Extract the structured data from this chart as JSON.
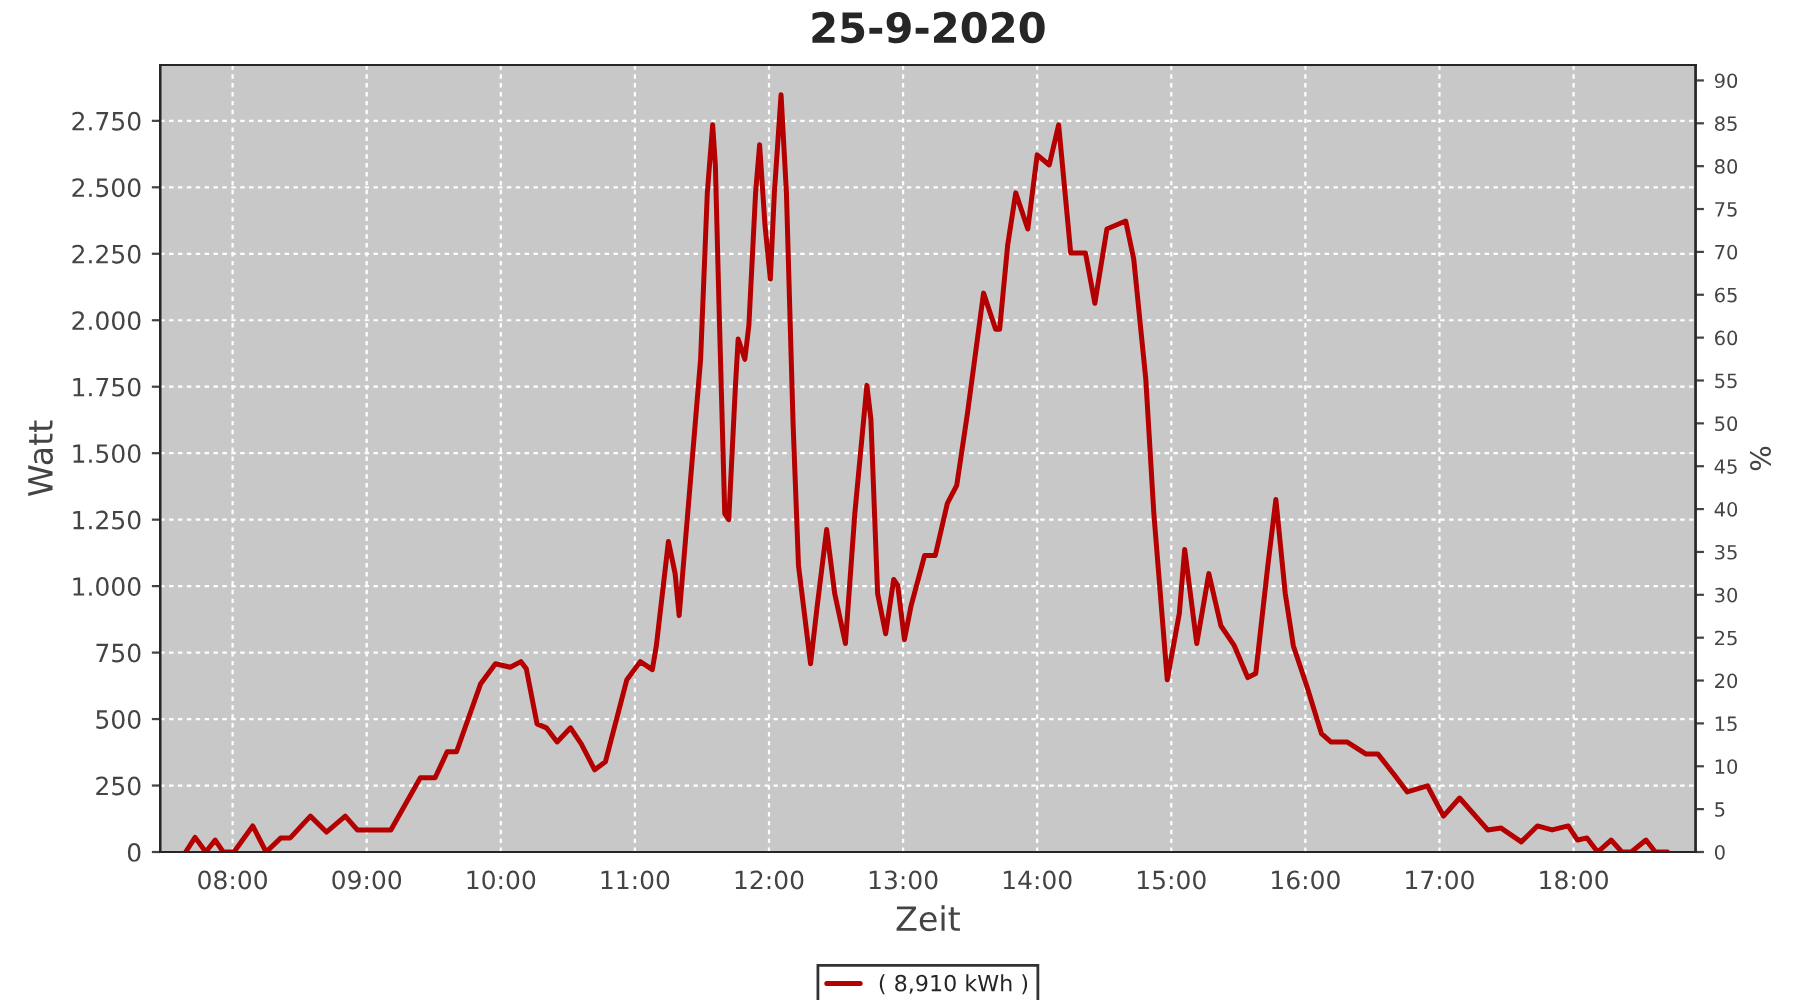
{
  "chart_data": {
    "type": "line",
    "title": "25-9-2020",
    "xlabel": "Zeit",
    "ylabel": "Watt",
    "y2label": "%",
    "x": [
      7.65,
      7.72,
      7.8,
      7.87,
      7.93,
      8.01,
      8.15,
      8.25,
      8.36,
      8.43,
      8.58,
      8.7,
      8.84,
      8.93,
      9.18,
      9.4,
      9.51,
      9.6,
      9.67,
      9.85,
      9.96,
      10.07,
      10.15,
      10.19,
      10.27,
      10.34,
      10.42,
      10.52,
      10.6,
      10.7,
      10.78,
      10.94,
      11.04,
      11.13,
      11.16,
      11.25,
      11.3,
      11.33,
      11.39,
      11.49,
      11.54,
      11.58,
      11.6,
      11.63,
      11.67,
      11.7,
      11.75,
      11.77,
      11.82,
      11.85,
      11.9,
      11.93,
      11.97,
      12.01,
      12.04,
      12.09,
      12.13,
      12.18,
      12.22,
      12.31,
      12.36,
      12.43,
      12.49,
      12.57,
      12.64,
      12.73,
      12.76,
      12.81,
      12.87,
      12.93,
      12.96,
      13.01,
      13.06,
      13.16,
      13.24,
      13.33,
      13.4,
      13.48,
      13.6,
      13.69,
      13.72,
      13.78,
      13.84,
      13.93,
      14.0,
      14.09,
      14.16,
      14.25,
      14.36,
      14.43,
      14.52,
      14.66,
      14.72,
      14.81,
      14.87,
      14.97,
      15.06,
      15.1,
      15.19,
      15.28,
      15.37,
      15.47,
      15.57,
      15.63,
      15.72,
      15.78,
      15.85,
      15.91,
      16.01,
      16.12,
      16.19,
      16.31,
      16.45,
      16.54,
      16.67,
      16.76,
      16.91,
      17.03,
      17.15,
      17.36,
      17.46,
      17.61,
      17.73,
      17.84,
      17.96,
      18.03,
      18.1,
      18.18,
      18.28,
      18.36,
      18.43,
      18.54,
      18.61,
      18.7
    ],
    "series": [
      {
        "name": "( 8,910 kWh )",
        "color": "#b40000",
        "values": [
          0,
          55,
          0,
          45,
          0,
          0,
          98,
          0,
          53,
          53,
          135,
          75,
          135,
          83,
          83,
          279,
          279,
          377,
          377,
          633,
          708,
          695,
          716,
          689,
          482,
          467,
          414,
          467,
          407,
          309,
          339,
          648,
          716,
          686,
          776,
          1168,
          1047,
          889,
          1250,
          1853,
          2479,
          2735,
          2584,
          2004,
          1273,
          1250,
          1755,
          1929,
          1853,
          1981,
          2479,
          2660,
          2358,
          2155,
          2479,
          2848,
          2479,
          1605,
          1077,
          708,
          927,
          1213,
          972,
          784,
          1273,
          1755,
          1627,
          972,
          821,
          1025,
          1003,
          799,
          927,
          1115,
          1115,
          1311,
          1379,
          1650,
          2102,
          1966,
          1966,
          2283,
          2479,
          2343,
          2622,
          2584,
          2735,
          2253,
          2253,
          2064,
          2343,
          2373,
          2230,
          1778,
          1273,
          648,
          897,
          1138,
          784,
          1047,
          851,
          776,
          656,
          671,
          1077,
          1326,
          972,
          776,
          625,
          445,
          414,
          414,
          369,
          369,
          286,
          226,
          249,
          135,
          203,
          83,
          90,
          38,
          98,
          83,
          98,
          45,
          53,
          0,
          45,
          0,
          0,
          45,
          0,
          0
        ]
      }
    ],
    "xlim": [
      7.46,
      18.91
    ],
    "xticks": [
      {
        "value": 8,
        "label": "08:00"
      },
      {
        "value": 9,
        "label": "09:00"
      },
      {
        "value": 10,
        "label": "10:00"
      },
      {
        "value": 11,
        "label": "11:00"
      },
      {
        "value": 12,
        "label": "12:00"
      },
      {
        "value": 13,
        "label": "13:00"
      },
      {
        "value": 14,
        "label": "14:00"
      },
      {
        "value": 15,
        "label": "15:00"
      },
      {
        "value": 16,
        "label": "16:00"
      },
      {
        "value": 17,
        "label": "17:00"
      },
      {
        "value": 18,
        "label": "18:00"
      }
    ],
    "ylim": [
      0,
      2960
    ],
    "yticks": [
      0,
      250,
      500,
      750,
      {
        "value": 1000,
        "label": "1.000"
      },
      {
        "value": 1250,
        "label": "1.250"
      },
      {
        "value": 1500,
        "label": "1.500"
      },
      {
        "value": 1750,
        "label": "1.750"
      },
      {
        "value": 2000,
        "label": "2.000"
      },
      {
        "value": 2250,
        "label": "2.250"
      },
      {
        "value": 2500,
        "label": "2.500"
      },
      {
        "value": 2750,
        "label": "2.750"
      }
    ],
    "y2lim": [
      0,
      91.8
    ],
    "y2ticks": [
      0,
      5,
      10,
      15,
      20,
      25,
      30,
      35,
      40,
      45,
      50,
      55,
      60,
      65,
      70,
      75,
      80,
      85,
      90
    ],
    "grid": true,
    "legend": "bottom"
  }
}
